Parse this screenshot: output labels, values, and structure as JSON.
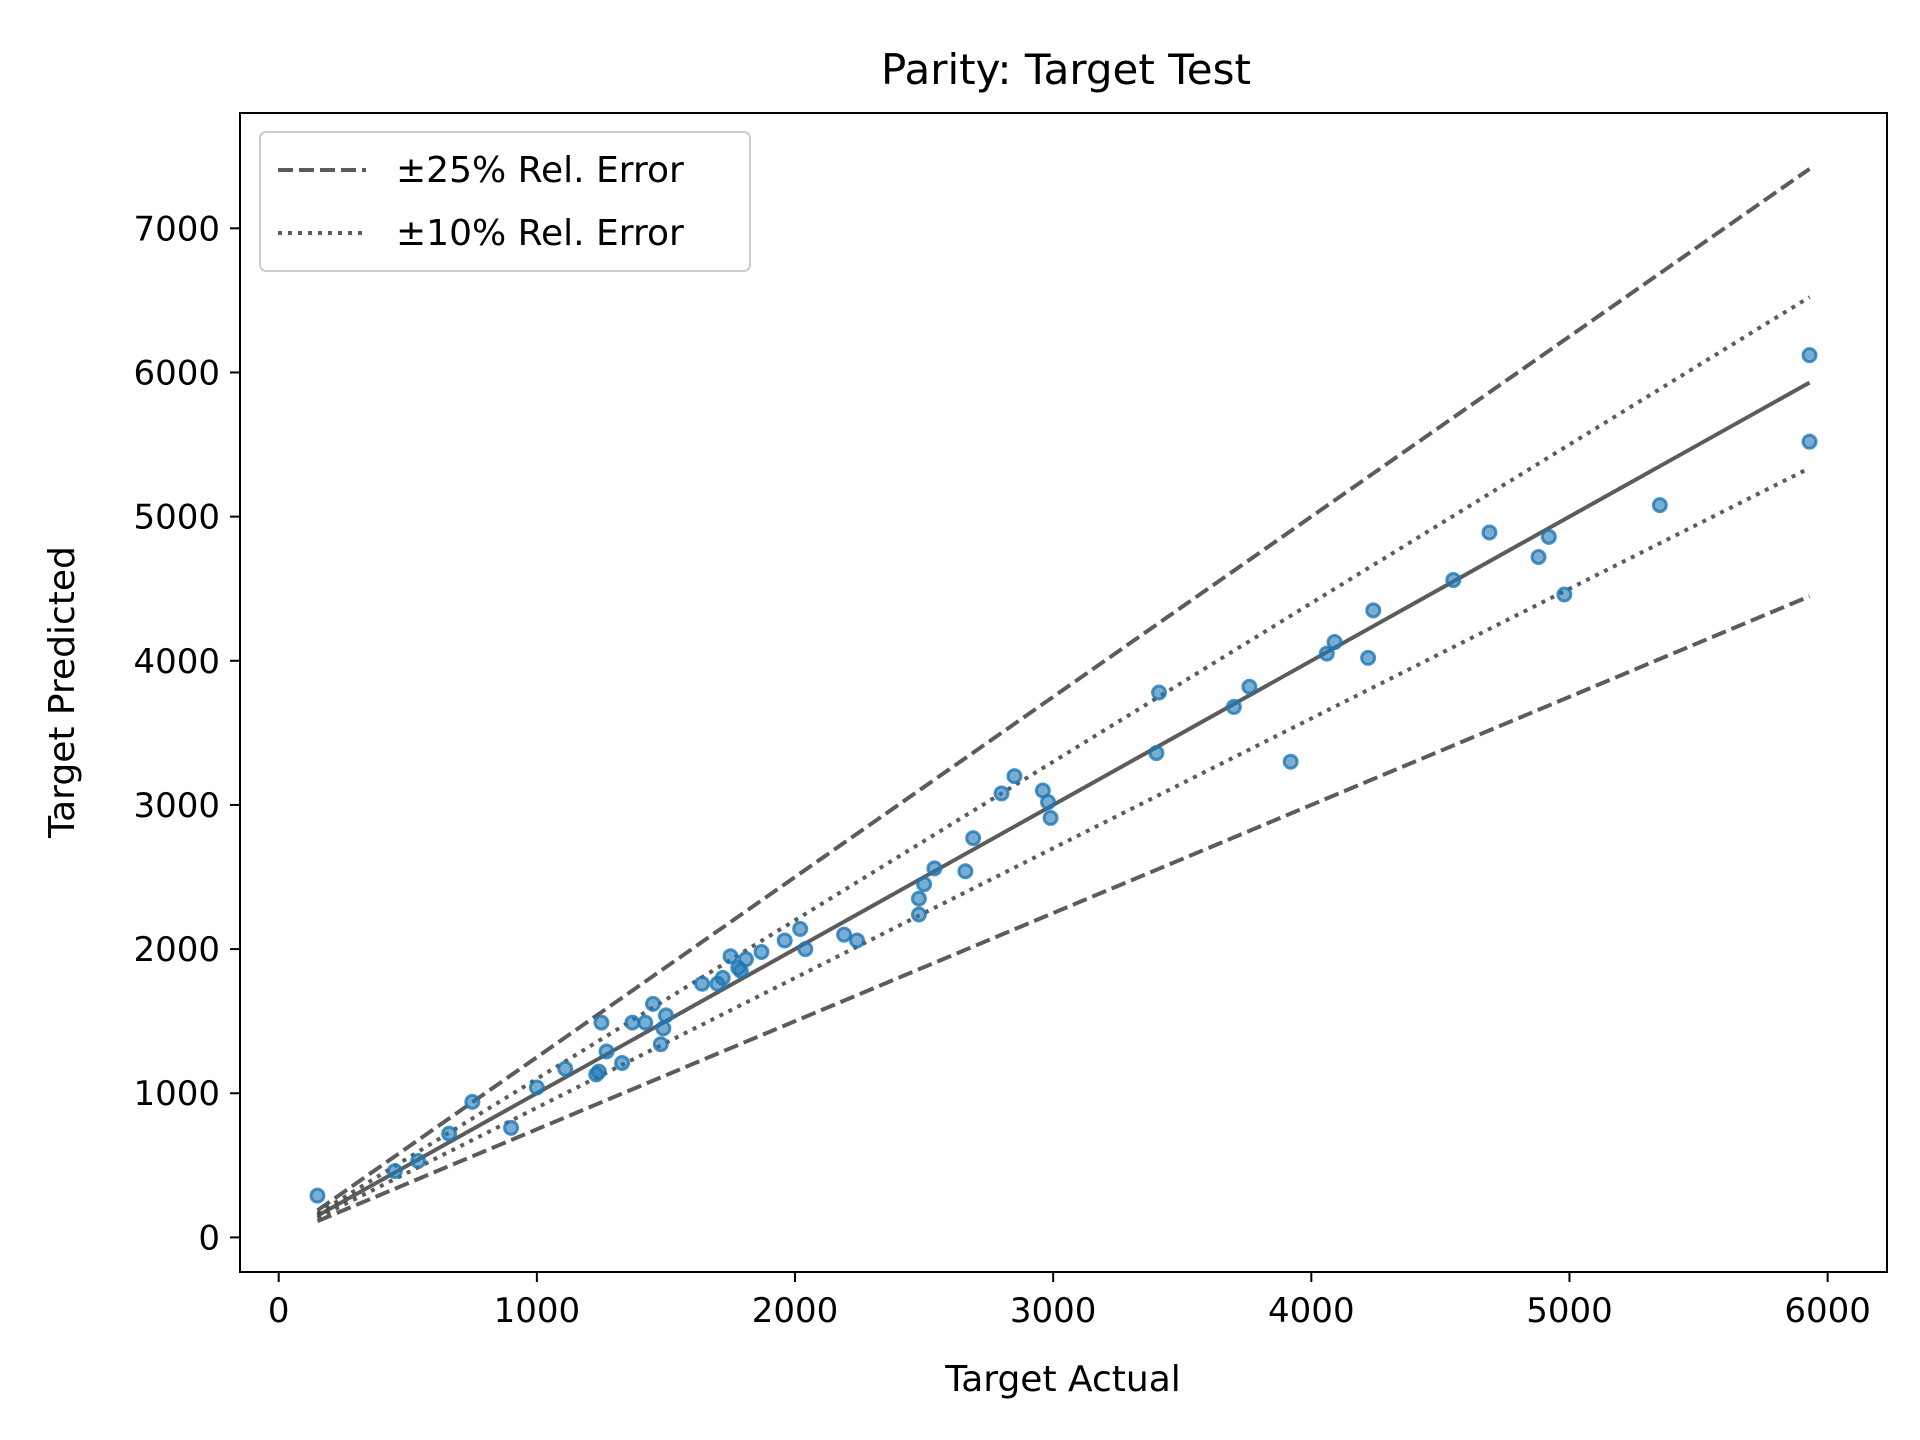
{
  "chart_data": {
    "type": "scatter",
    "title": "Parity: Target Test",
    "xlabel": "Target Actual",
    "ylabel": "Target Predicted",
    "xlim": [
      -150,
      6230
    ],
    "ylim": [
      -240,
      7800
    ],
    "x_ticks": [
      0,
      1000,
      2000,
      3000,
      4000,
      5000,
      6000
    ],
    "y_ticks": [
      0,
      1000,
      2000,
      3000,
      4000,
      5000,
      6000,
      7000
    ],
    "x_tick_labels": [
      "0",
      "1000",
      "2000",
      "3000",
      "4000",
      "5000",
      "6000"
    ],
    "y_tick_labels": [
      "0",
      "1000",
      "2000",
      "3000",
      "4000",
      "5000",
      "6000",
      "7000"
    ],
    "grid": false,
    "legend_position": "upper left",
    "colors": {
      "points": "#1f77b4",
      "lines": "#404040"
    },
    "reference_lines": [
      {
        "name": "parity",
        "style": "solid",
        "slope": 1.0,
        "x_range": [
          150,
          5930
        ]
      },
      {
        "name": "±25% Rel. Error",
        "style": "dashed",
        "slopes": [
          1.25,
          0.75
        ],
        "x_range": [
          150,
          5930
        ]
      },
      {
        "name": "±10% Rel. Error",
        "style": "dotted",
        "slopes": [
          1.1,
          0.9
        ],
        "x_range": [
          150,
          5930
        ]
      }
    ],
    "legend": [
      {
        "label": "±25% Rel. Error",
        "style": "dashed"
      },
      {
        "label": "±10% Rel. Error",
        "style": "dotted"
      }
    ],
    "points": [
      [
        150,
        290
      ],
      [
        450,
        460
      ],
      [
        540,
        530
      ],
      [
        660,
        720
      ],
      [
        750,
        940
      ],
      [
        900,
        760
      ],
      [
        1000,
        1040
      ],
      [
        1110,
        1170
      ],
      [
        1230,
        1130
      ],
      [
        1240,
        1150
      ],
      [
        1250,
        1490
      ],
      [
        1270,
        1290
      ],
      [
        1330,
        1210
      ],
      [
        1370,
        1490
      ],
      [
        1420,
        1490
      ],
      [
        1450,
        1620
      ],
      [
        1480,
        1340
      ],
      [
        1490,
        1450
      ],
      [
        1500,
        1540
      ],
      [
        1640,
        1760
      ],
      [
        1700,
        1760
      ],
      [
        1720,
        1800
      ],
      [
        1750,
        1950
      ],
      [
        1780,
        1870
      ],
      [
        1790,
        1850
      ],
      [
        1810,
        1930
      ],
      [
        1870,
        1980
      ],
      [
        1960,
        2060
      ],
      [
        2020,
        2140
      ],
      [
        2040,
        2000
      ],
      [
        2190,
        2100
      ],
      [
        2240,
        2060
      ],
      [
        2480,
        2240
      ],
      [
        2480,
        2350
      ],
      [
        2500,
        2450
      ],
      [
        2540,
        2560
      ],
      [
        2660,
        2540
      ],
      [
        2690,
        2770
      ],
      [
        2800,
        3080
      ],
      [
        2850,
        3200
      ],
      [
        2960,
        3100
      ],
      [
        2980,
        3020
      ],
      [
        2990,
        2910
      ],
      [
        3400,
        3360
      ],
      [
        3410,
        3780
      ],
      [
        3700,
        3680
      ],
      [
        3760,
        3820
      ],
      [
        3920,
        3300
      ],
      [
        4060,
        4050
      ],
      [
        4090,
        4130
      ],
      [
        4220,
        4020
      ],
      [
        4240,
        4350
      ],
      [
        4550,
        4560
      ],
      [
        4690,
        4890
      ],
      [
        4880,
        4720
      ],
      [
        4920,
        4860
      ],
      [
        4980,
        4460
      ],
      [
        5350,
        5080
      ],
      [
        5930,
        6120
      ],
      [
        5930,
        5520
      ]
    ]
  }
}
